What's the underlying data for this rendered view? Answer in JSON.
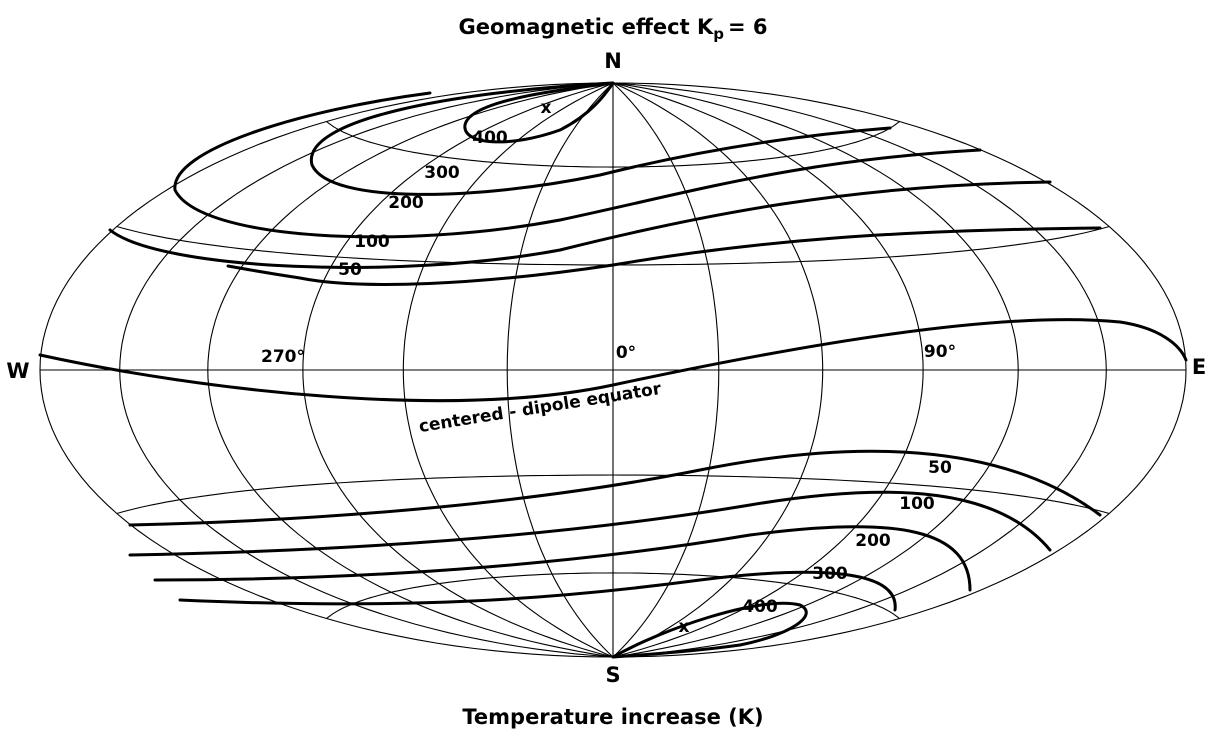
{
  "title": {
    "text": "Geomagnetic effect",
    "symbol": "K",
    "subscript": "p",
    "value": "= 6"
  },
  "caption": "Temperature increase (K)",
  "poles": {
    "north": "N",
    "south": "S",
    "west": "W",
    "east": "E"
  },
  "longitudes": [
    "270°",
    "0°",
    "90°"
  ],
  "equator_label": "centered - dipole equator",
  "contours": {
    "north": [
      "400",
      "300",
      "200",
      "100",
      "50"
    ],
    "south": [
      "50",
      "100",
      "200",
      "300",
      "400"
    ]
  },
  "markers": [
    "x",
    "x"
  ]
}
